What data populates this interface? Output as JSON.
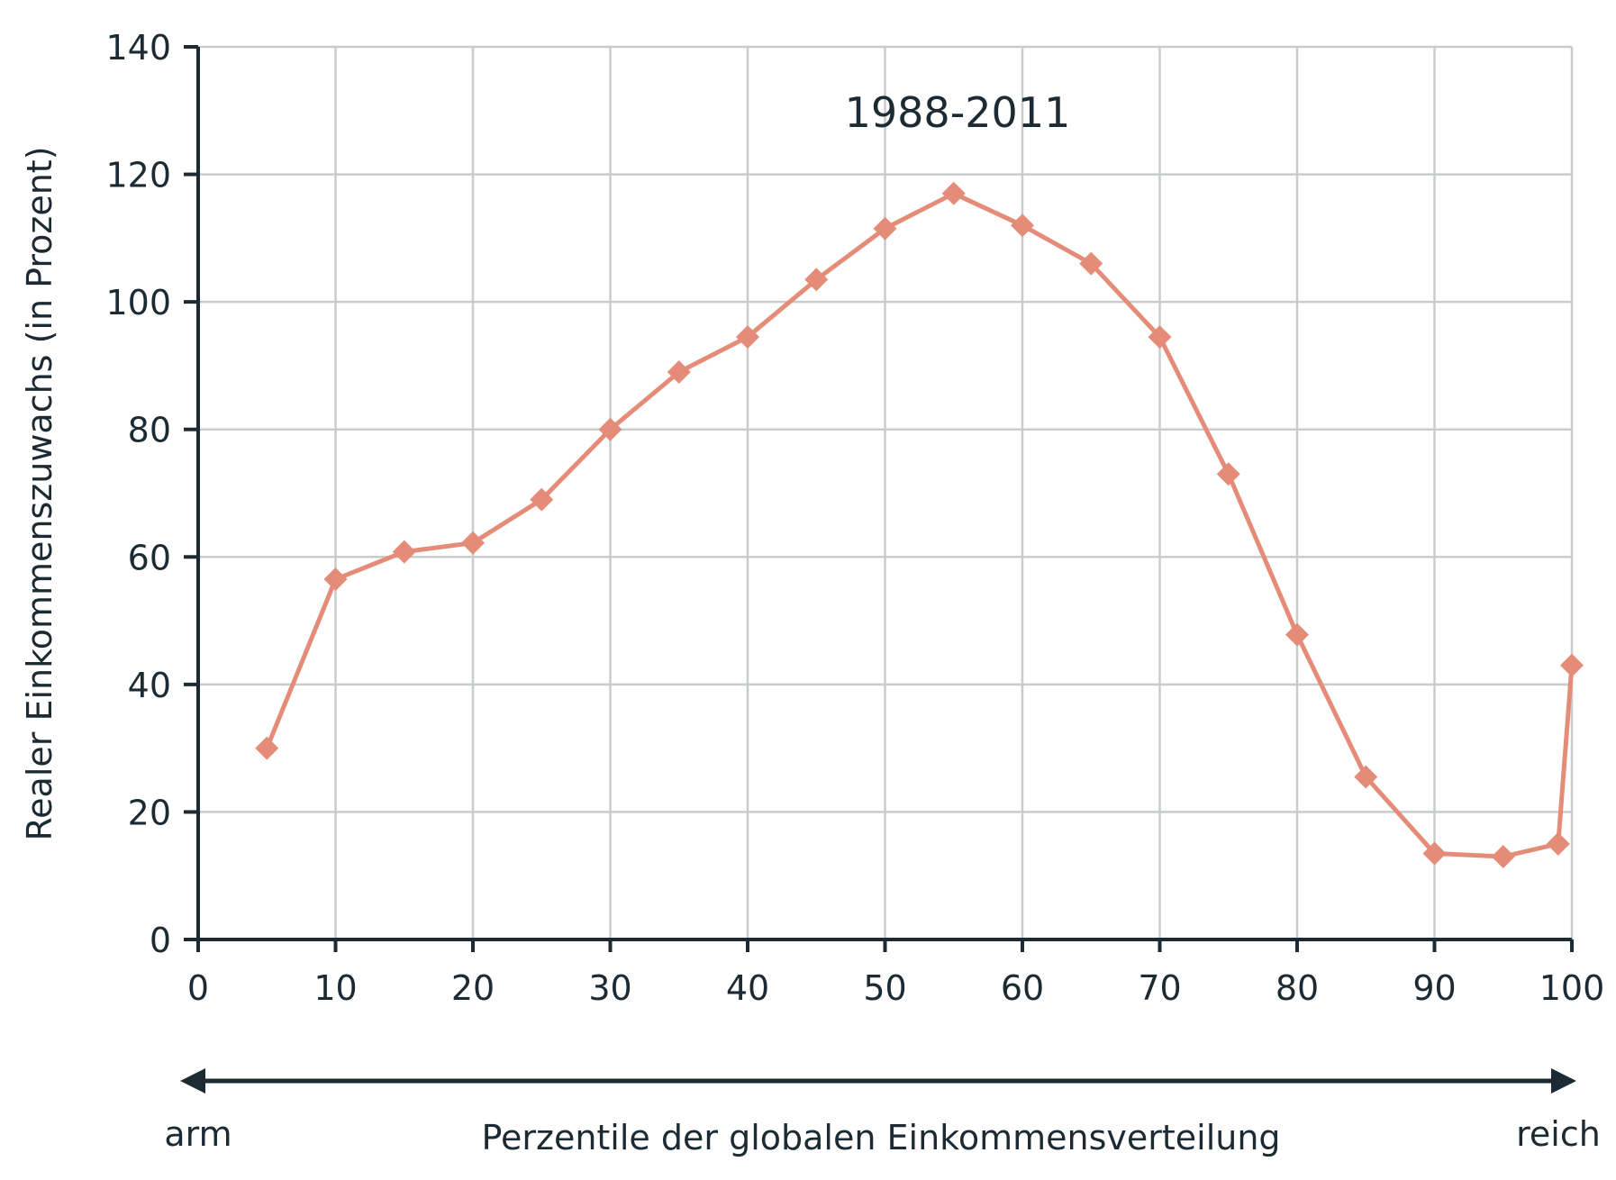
{
  "chart_data": {
    "type": "line",
    "title": "1988-2011",
    "xlabel": "Perzentile der globalen Einkommensverteilung",
    "ylabel": "Realer Einkommenszuwachs (in Prozent)",
    "x_left_label": "arm",
    "x_right_label": "reich",
    "xlim": [
      0,
      100
    ],
    "ylim": [
      0,
      140
    ],
    "x_ticks": [
      0,
      10,
      20,
      30,
      40,
      50,
      60,
      70,
      80,
      90,
      100
    ],
    "y_ticks": [
      0,
      20,
      40,
      60,
      80,
      100,
      120,
      140
    ],
    "grid": true,
    "series": [
      {
        "color": "#e58c78",
        "marker": "diamond",
        "points": [
          {
            "x": 5,
            "y": 30
          },
          {
            "x": 10,
            "y": 56.5
          },
          {
            "x": 15,
            "y": 60.8
          },
          {
            "x": 20,
            "y": 62.2
          },
          {
            "x": 25,
            "y": 69
          },
          {
            "x": 30,
            "y": 80
          },
          {
            "x": 35,
            "y": 89
          },
          {
            "x": 40,
            "y": 94.5
          },
          {
            "x": 45,
            "y": 103.5
          },
          {
            "x": 50,
            "y": 111.5
          },
          {
            "x": 55,
            "y": 117
          },
          {
            "x": 60,
            "y": 112
          },
          {
            "x": 65,
            "y": 106
          },
          {
            "x": 70,
            "y": 94.5
          },
          {
            "x": 75,
            "y": 73
          },
          {
            "x": 80,
            "y": 47.8
          },
          {
            "x": 85,
            "y": 25.5
          },
          {
            "x": 90,
            "y": 13.5
          },
          {
            "x": 95,
            "y": 13
          },
          {
            "x": 99,
            "y": 15
          },
          {
            "x": 100,
            "y": 43
          }
        ]
      }
    ],
    "colors": {
      "axis": "#1c2b33",
      "grid": "#c8cccd",
      "line": "#e58c78",
      "text": "#1c2b33"
    }
  }
}
